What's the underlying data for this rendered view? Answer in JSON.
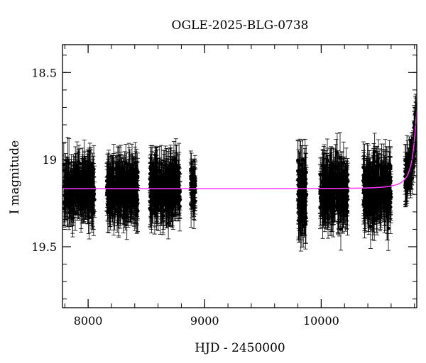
{
  "chart_data": {
    "type": "scatter",
    "title": "OGLE-2025-BLG-0738",
    "xlabel": "HJD - 2450000",
    "ylabel": "I magnitude",
    "xlim": [
      7780,
      10820
    ],
    "ylim": [
      19.85,
      18.34
    ],
    "y_inverted": true,
    "grid": false,
    "x_ticks": [
      {
        "value": 8000,
        "label": "8000"
      },
      {
        "value": 9000,
        "label": "9000"
      },
      {
        "value": 10000,
        "label": "10000"
      }
    ],
    "y_ticks": [
      {
        "value": 18.5,
        "label": "18.5"
      },
      {
        "value": 19,
        "label": "19"
      },
      {
        "value": 19.5,
        "label": "19.5"
      }
    ],
    "x_minor_step": 200,
    "y_minor_step": 0.1,
    "series": [
      {
        "kind": "observations",
        "marker_color": "#000000",
        "error_bar_color": "#000000",
        "seasons": [
          {
            "x_start": 7790,
            "x_end": 8055,
            "y_center": 19.17,
            "y_spread": 0.12,
            "err": 0.11
          },
          {
            "x_start": 8160,
            "x_end": 8430,
            "y_center": 19.17,
            "y_spread": 0.12,
            "err": 0.11
          },
          {
            "x_start": 8530,
            "x_end": 8790,
            "y_center": 19.17,
            "y_spread": 0.12,
            "err": 0.11
          },
          {
            "x_start": 8880,
            "x_end": 8920,
            "y_center": 19.17,
            "y_spread": 0.1,
            "err": 0.1
          },
          {
            "x_start": 9800,
            "x_end": 9875,
            "y_center": 19.2,
            "y_spread": 0.15,
            "err": 0.15
          },
          {
            "x_start": 9990,
            "x_end": 10230,
            "y_center": 19.18,
            "y_spread": 0.13,
            "err": 0.12
          },
          {
            "x_start": 10360,
            "x_end": 10600,
            "y_center": 19.18,
            "y_spread": 0.13,
            "err": 0.12
          },
          {
            "x_start": 10720,
            "x_end": 10815,
            "y_center": 19.1,
            "y_spread": 0.1,
            "err": 0.09,
            "event": true
          }
        ]
      },
      {
        "kind": "model",
        "line_color": "#ff33ff",
        "baseline": 19.167,
        "t0": 10840,
        "peak_mag": 18.6,
        "tE": 40
      }
    ]
  }
}
